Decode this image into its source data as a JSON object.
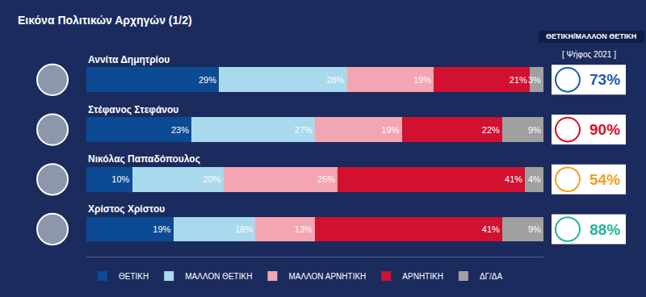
{
  "chart_data": {
    "type": "bar",
    "title": "Εικόνα Πολιτικών Αρχηγών (1/2)",
    "orientation": "horizontal",
    "stacked": true,
    "data_labels": true,
    "tick_labels": false,
    "legend": "bottom",
    "grid": false,
    "categories": [
      "Αννίτα Δημητρίου",
      "Στέφανος Στεφάνου",
      "Νικόλας Παπαδόπουλος",
      "Χρίστος Χρίστου"
    ],
    "xlim": [
      0,
      100
    ],
    "xticks": [],
    "series": [
      {
        "name": "ΘΕΤΙΚΗ",
        "color": "#0d4a94",
        "values": [
          29,
          23,
          10,
          19
        ],
        "value_labels": [
          "29%",
          "23%",
          "10%",
          "19%"
        ]
      },
      {
        "name": "ΜΑΛΛΟΝ ΘΕΤΙΚΗ",
        "color": "#a9d9ec",
        "values": [
          28,
          27,
          20,
          18
        ],
        "value_labels": [
          "28%",
          "27%",
          "20%",
          "18%"
        ]
      },
      {
        "name": "ΜΑΛΛΟΝ ΑΡΝΗΤΙΚΗ",
        "color": "#f3a6b1",
        "values": [
          19,
          19,
          25,
          13
        ],
        "value_labels": [
          "19%",
          "19%",
          "25%",
          "13%"
        ]
      },
      {
        "name": "ΑΡΝΗΤΙΚΗ",
        "color": "#d2102f",
        "values": [
          21,
          22,
          41,
          41
        ],
        "value_labels": [
          "21%",
          "22%",
          "41%",
          "41%"
        ]
      },
      {
        "name": "ΔΓ/ΔΑ",
        "color": "#a0a0a0",
        "values": [
          3,
          9,
          4,
          9
        ],
        "value_labels": [
          "3%",
          "9%",
          "4%",
          "9%"
        ]
      }
    ],
    "vote_2021": {
      "title": "ΘΕΤΙΚΗ/ΜΑΛΛΟΝ ΘΕΤΙΚΗ",
      "subtitle": "[ Ψήφος 2021 ]",
      "values": [
        73,
        90,
        54,
        88
      ],
      "value_labels": [
        "73%",
        "90%",
        "54%",
        "88%"
      ],
      "colors": [
        "#1a5ea8",
        "#d2102f",
        "#f2a01f",
        "#27b39e"
      ]
    }
  }
}
